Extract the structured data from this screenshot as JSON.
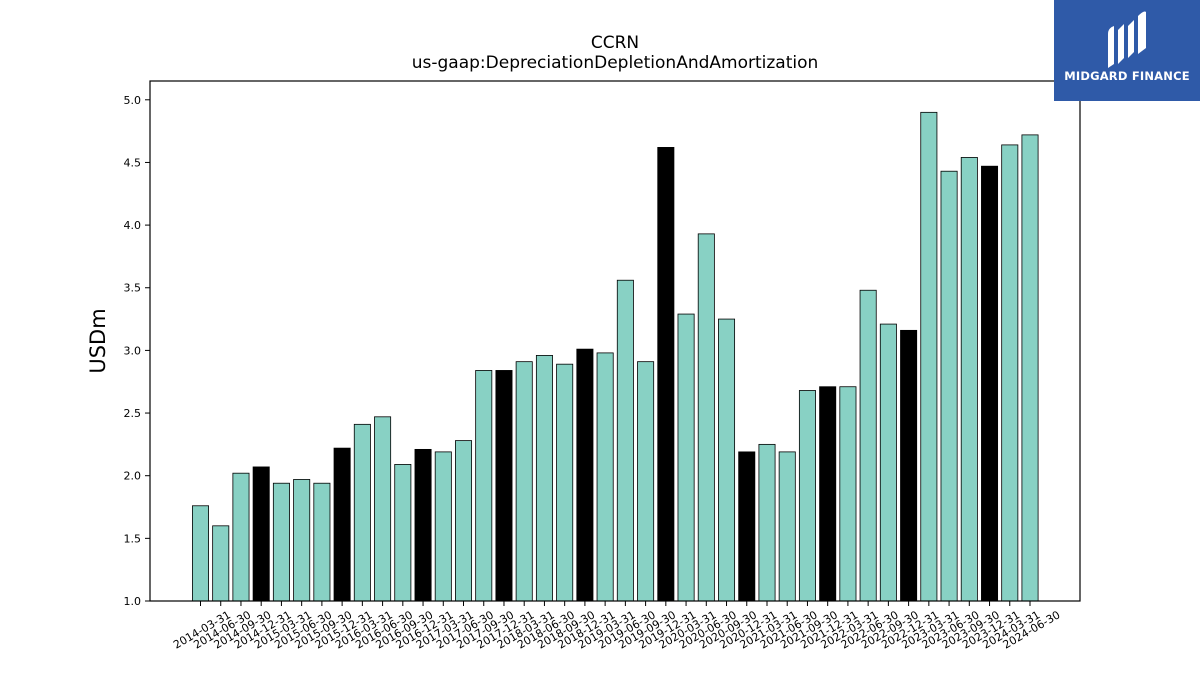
{
  "logo": {
    "text": "MIDGARD FINANCE"
  },
  "chart_data": {
    "type": "bar",
    "title": "CCRN",
    "subtitle": "us-gaap:DepreciationDepletionAndAmortization",
    "xlabel": "",
    "ylabel": "USDm",
    "ylim": [
      1.0,
      5.15
    ],
    "yticks": [
      "1.0",
      "1.5",
      "2.0",
      "2.5",
      "3.0",
      "3.5",
      "4.0",
      "4.5",
      "5.0"
    ],
    "grid": false,
    "colors": {
      "quarter": "#88d1c4",
      "year_end": "#000000"
    },
    "categories": [
      "2014-03-31",
      "2014-06-30",
      "2014-09-30",
      "2014-12-31",
      "2015-03-31",
      "2015-06-30",
      "2015-09-30",
      "2015-12-31",
      "2016-03-31",
      "2016-06-30",
      "2016-09-30",
      "2016-12-31",
      "2017-03-31",
      "2017-06-30",
      "2017-09-30",
      "2017-12-31",
      "2018-03-31",
      "2018-06-30",
      "2018-09-30",
      "2018-12-31",
      "2019-03-31",
      "2019-06-30",
      "2019-09-30",
      "2019-12-31",
      "2020-03-31",
      "2020-06-30",
      "2020-09-30",
      "2020-12-31",
      "2021-03-31",
      "2021-06-30",
      "2021-09-30",
      "2021-12-31",
      "2022-03-31",
      "2022-06-30",
      "2022-09-30",
      "2022-12-31",
      "2023-03-31",
      "2023-06-30",
      "2023-09-30",
      "2023-12-31",
      "2024-03-31",
      "2024-06-30"
    ],
    "values": [
      1.76,
      1.6,
      2.02,
      2.07,
      1.94,
      1.97,
      1.94,
      2.22,
      2.41,
      2.47,
      2.09,
      2.21,
      2.19,
      2.28,
      2.84,
      2.84,
      2.91,
      2.96,
      2.89,
      3.01,
      2.98,
      3.56,
      2.91,
      4.62,
      3.29,
      3.93,
      3.25,
      2.19,
      2.25,
      2.19,
      2.68,
      2.71,
      2.71,
      3.48,
      3.21,
      3.16,
      4.9,
      4.43,
      4.54,
      4.47,
      4.64,
      4.72
    ]
  }
}
